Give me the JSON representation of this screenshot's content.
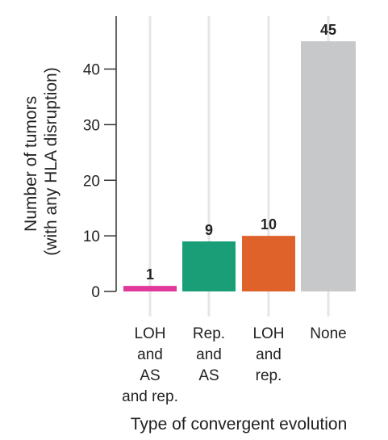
{
  "chart_data": {
    "type": "bar",
    "title": "",
    "xlabel": "Type of convergent evolution",
    "ylabel": [
      "Number of tumors",
      "(with any HLA disruption)"
    ],
    "ylim": [
      0,
      47
    ],
    "yticks": [
      0,
      10,
      20,
      30,
      40
    ],
    "grid": false,
    "legend": "none",
    "categories": [
      [
        "LOH",
        "and",
        "AS",
        "and rep."
      ],
      [
        "Rep.",
        "and",
        "AS"
      ],
      [
        "LOH",
        "and",
        "rep."
      ],
      [
        "None"
      ]
    ],
    "values": [
      1,
      9,
      10,
      45
    ],
    "data_labels": [
      "1",
      "9",
      "10",
      "45"
    ],
    "colors": [
      "#e0399a",
      "#1a9e77",
      "#e0622b",
      "#c7c8ca"
    ],
    "axis_color": "#333333"
  }
}
